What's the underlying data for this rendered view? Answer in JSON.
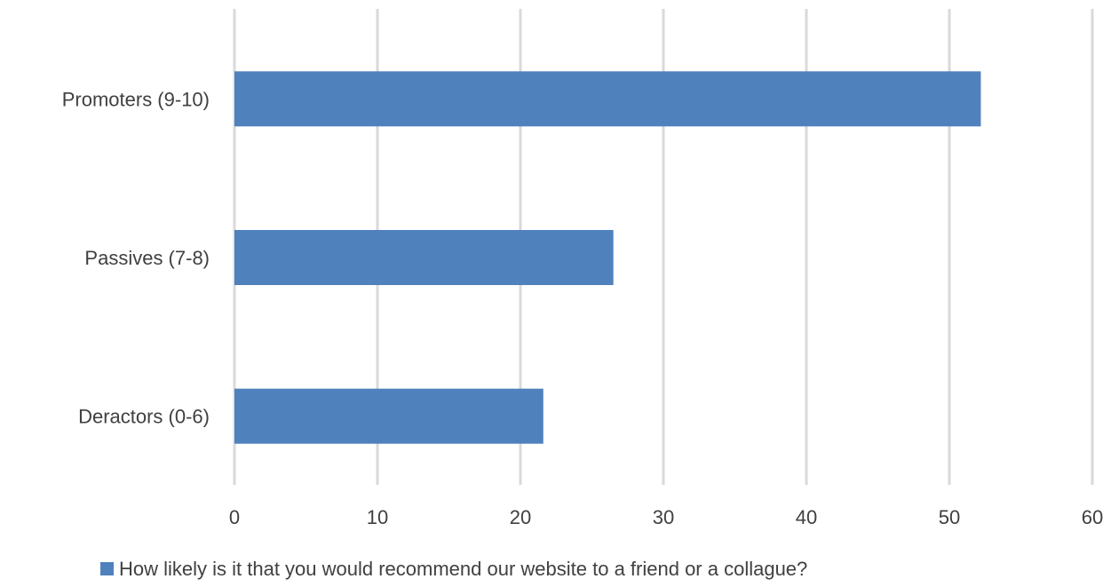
{
  "chart_data": {
    "type": "bar",
    "orientation": "horizontal",
    "categories": [
      "Promoters (9-10)",
      "Passives (7-8)",
      "Deractors (0-6)"
    ],
    "series": [
      {
        "name": "How likely is it that you would recommend our website to a friend or a collague?",
        "values": [
          52.2,
          26.5,
          21.6
        ],
        "color": "#4f81bd"
      }
    ],
    "xlim": [
      0,
      60
    ],
    "x_ticks": [
      "0",
      "10",
      "20",
      "30",
      "40",
      "50",
      "60"
    ],
    "grid": true,
    "legend_position": "bottom"
  }
}
